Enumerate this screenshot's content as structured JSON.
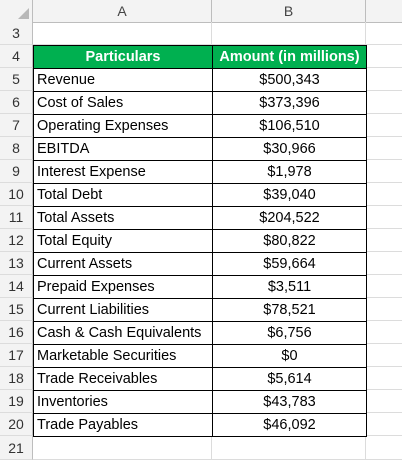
{
  "columns": [
    "A",
    "B"
  ],
  "rows": [
    {
      "num": "3"
    },
    {
      "num": "4"
    },
    {
      "num": "5"
    },
    {
      "num": "6"
    },
    {
      "num": "7"
    },
    {
      "num": "8"
    },
    {
      "num": "9"
    },
    {
      "num": "10"
    },
    {
      "num": "11"
    },
    {
      "num": "12"
    },
    {
      "num": "13"
    },
    {
      "num": "14"
    },
    {
      "num": "15"
    },
    {
      "num": "16"
    },
    {
      "num": "17"
    },
    {
      "num": "18"
    },
    {
      "num": "19"
    },
    {
      "num": "20"
    },
    {
      "num": "21"
    }
  ],
  "table": {
    "header": {
      "particulars": "Particulars",
      "amount": "Amount (in millions)"
    },
    "header_color": "#00b050",
    "items": [
      {
        "particular": "Revenue",
        "amount": "$500,343"
      },
      {
        "particular": "Cost of Sales",
        "amount": "$373,396"
      },
      {
        "particular": "Operating Expenses",
        "amount": "$106,510"
      },
      {
        "particular": "EBITDA",
        "amount": "$30,966"
      },
      {
        "particular": "Interest Expense",
        "amount": "$1,978"
      },
      {
        "particular": "Total Debt",
        "amount": "$39,040"
      },
      {
        "particular": "Total Assets",
        "amount": "$204,522"
      },
      {
        "particular": "Total Equity",
        "amount": "$80,822"
      },
      {
        "particular": "Current Assets",
        "amount": "$59,664"
      },
      {
        "particular": "Prepaid Expenses",
        "amount": "$3,511"
      },
      {
        "particular": "Current Liabilities",
        "amount": "$78,521"
      },
      {
        "particular": "Cash & Cash Equivalents",
        "amount": "$6,756"
      },
      {
        "particular": "Marketable Securities",
        "amount": "$0"
      },
      {
        "particular": "Trade Receivables",
        "amount": "$5,614"
      },
      {
        "particular": "Inventories",
        "amount": "$43,783"
      },
      {
        "particular": "Trade Payables",
        "amount": "$46,092"
      }
    ]
  }
}
